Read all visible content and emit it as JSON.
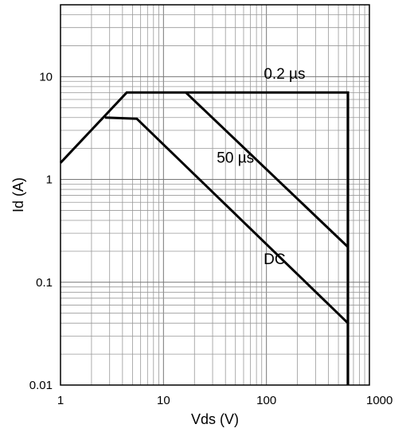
{
  "chart_data": {
    "type": "line",
    "title": "",
    "xlabel": "Vds (V)",
    "ylabel": "Id (A)",
    "x_scale": "log",
    "y_scale": "log",
    "xlim": [
      1,
      1000
    ],
    "ylim": [
      0.01,
      50
    ],
    "grid": true,
    "x_ticks": [
      {
        "value": 1,
        "label": "1"
      },
      {
        "value": 10,
        "label": "10"
      },
      {
        "value": 100,
        "label": "100"
      },
      {
        "value": 1000,
        "label": "1000"
      }
    ],
    "y_ticks": [
      {
        "value": 0.01,
        "label": "0.01"
      },
      {
        "value": 0.1,
        "label": "0.1"
      },
      {
        "value": 1,
        "label": "1"
      },
      {
        "value": 10,
        "label": "10"
      }
    ],
    "series": [
      {
        "name": "0.2 µs",
        "color": "#000000",
        "points": [
          [
            1,
            1.45
          ],
          [
            4.4,
            7
          ],
          [
            620,
            7
          ],
          [
            620,
            0.01
          ]
        ]
      },
      {
        "name": "50 µs",
        "color": "#000000",
        "points": [
          [
            16.5,
            7
          ],
          [
            620,
            0.22
          ]
        ]
      },
      {
        "name": "DC",
        "color": "#000000",
        "points": [
          [
            2.7,
            4
          ],
          [
            5.5,
            3.9
          ],
          [
            620,
            0.04
          ]
        ]
      }
    ],
    "annotations": [
      {
        "text": "0.2 µs",
        "x": 150,
        "y": 9.5
      },
      {
        "text": "50 µs",
        "x": 50,
        "y": 1.45
      },
      {
        "text": "DC",
        "x": 120,
        "y": 0.15
      }
    ]
  }
}
